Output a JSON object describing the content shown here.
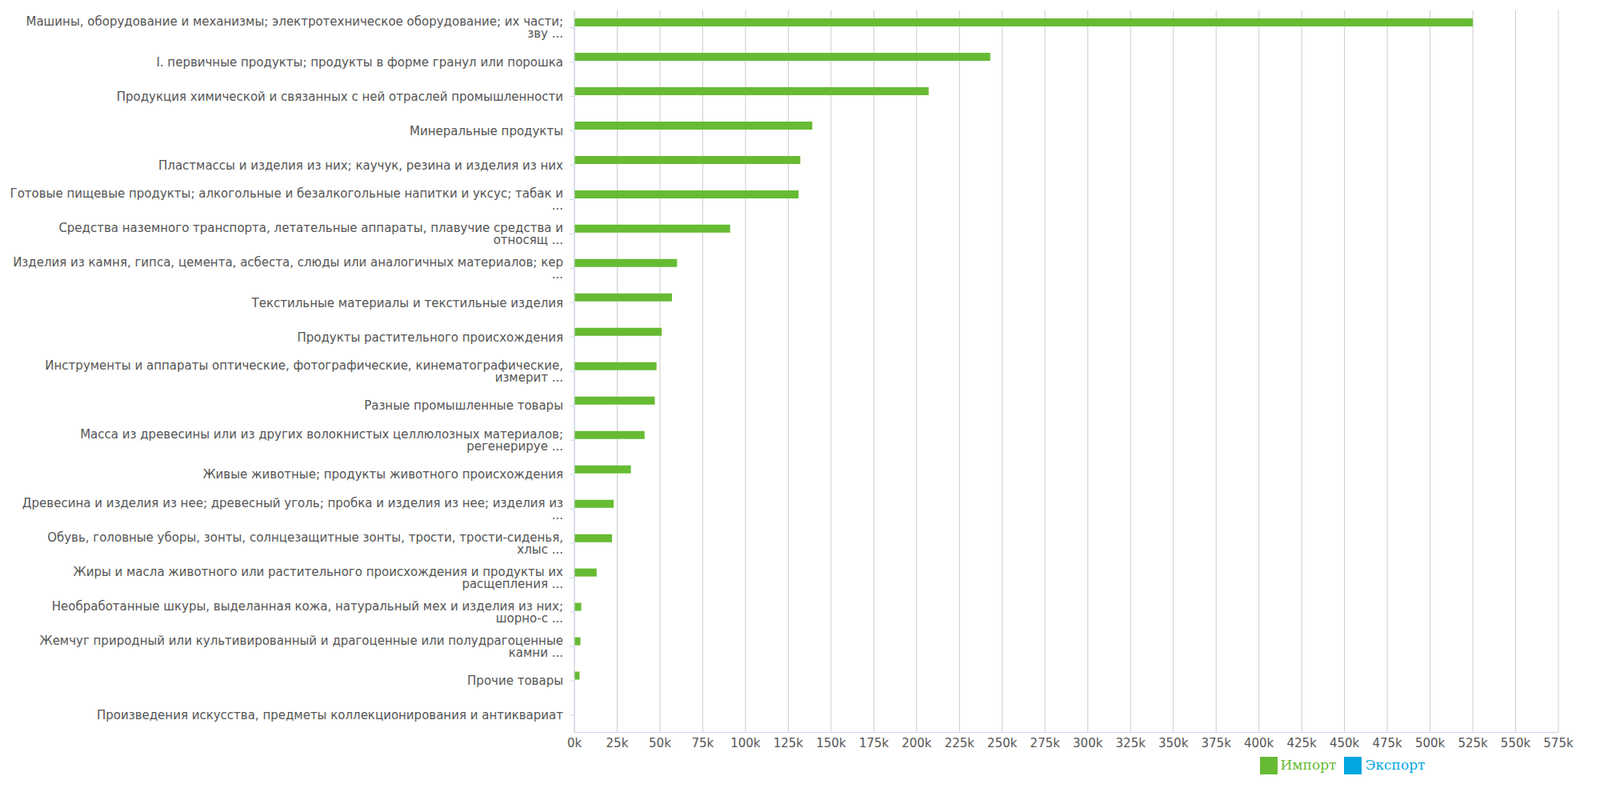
{
  "chart_data": {
    "type": "bar",
    "orientation": "horizontal",
    "grid": true,
    "legend": "bottom",
    "categories": [
      "Машины, оборудование и механизмы; электротехническое оборудование; их части;\nзву ...",
      "I. первичные продукты; продукты в форме гранул или порошка",
      "Продукция химической и связанных с ней отраслей промышленности",
      "Минеральные продукты",
      "Пластмассы и изделия из них; каучук, резина и изделия из них",
      "Готовые пищевые продукты; алкогольные и безалкогольные напитки и уксус; табак и\n...",
      "Средства наземного транспорта, летательные аппараты, плавучие средства и\nотносящ ...",
      "Изделия из камня, гипса, цемента, асбеста, слюды или аналогичных материалов; кер\n...",
      "Текстильные материалы и текстильные изделия",
      "Продукты растительного происхождения",
      "Инструменты и аппараты оптические, фотографические, кинематографические,\nизмерит ...",
      "Разные промышленные товары",
      "Масса из древесины или из других волокнистых целлюлозных материалов;\nрегенерируе ...",
      "Живые животные; продукты животного происхождения",
      "Древесина и изделия из нее; древесный уголь; пробка и изделия из нее; изделия из\n...",
      "Обувь, головные уборы, зонты, солнцезащитные зонты, трости, трости-сиденья,\nхлыс ...",
      "Жиры и масла животного или растительного происхождения и продукты их\nрасщепления ...",
      "Необработанные шкуры, выделанная кожа, натуральный мех и изделия из них;\nшорно-с ...",
      "Жемчуг природный или культивированный и драгоценные или полудрагоценные\nкамни ...",
      "Прочие товары",
      "Произведения искусства, предметы коллекционирования и антиквариат"
    ],
    "series": [
      {
        "name": "Импорт",
        "color": "#66bb33",
        "values": [
          525000,
          243000,
          207000,
          139000,
          132000,
          131000,
          91000,
          60000,
          57000,
          51000,
          48000,
          47000,
          41000,
          33000,
          23000,
          22000,
          13000,
          4000,
          3500,
          3000,
          0
        ]
      },
      {
        "name": "Экспорт",
        "color": "#00a6e0",
        "values": [
          0,
          0,
          0,
          0,
          0,
          0,
          0,
          0,
          0,
          0,
          0,
          0,
          0,
          0,
          0,
          0,
          0,
          0,
          0,
          0,
          0
        ]
      }
    ],
    "xlim": [
      0,
      575000
    ],
    "xticks": [
      {
        "value": 0,
        "label": "0k"
      },
      {
        "value": 25000,
        "label": "25k"
      },
      {
        "value": 50000,
        "label": "50k"
      },
      {
        "value": 75000,
        "label": "75k"
      },
      {
        "value": 100000,
        "label": "100k"
      },
      {
        "value": 125000,
        "label": "125k"
      },
      {
        "value": 150000,
        "label": "150k"
      },
      {
        "value": 175000,
        "label": "175k"
      },
      {
        "value": 200000,
        "label": "200k"
      },
      {
        "value": 225000,
        "label": "225k"
      },
      {
        "value": 250000,
        "label": "250k"
      },
      {
        "value": 275000,
        "label": "275k"
      },
      {
        "value": 300000,
        "label": "300k"
      },
      {
        "value": 325000,
        "label": "325k"
      },
      {
        "value": 350000,
        "label": "350k"
      },
      {
        "value": 375000,
        "label": "375k"
      },
      {
        "value": 400000,
        "label": "400k"
      },
      {
        "value": 425000,
        "label": "425k"
      },
      {
        "value": 450000,
        "label": "450k"
      },
      {
        "value": 475000,
        "label": "475k"
      },
      {
        "value": 500000,
        "label": "500k"
      },
      {
        "value": 525000,
        "label": "525k"
      },
      {
        "value": 550000,
        "label": "550k"
      },
      {
        "value": 575000,
        "label": "575k"
      }
    ]
  }
}
